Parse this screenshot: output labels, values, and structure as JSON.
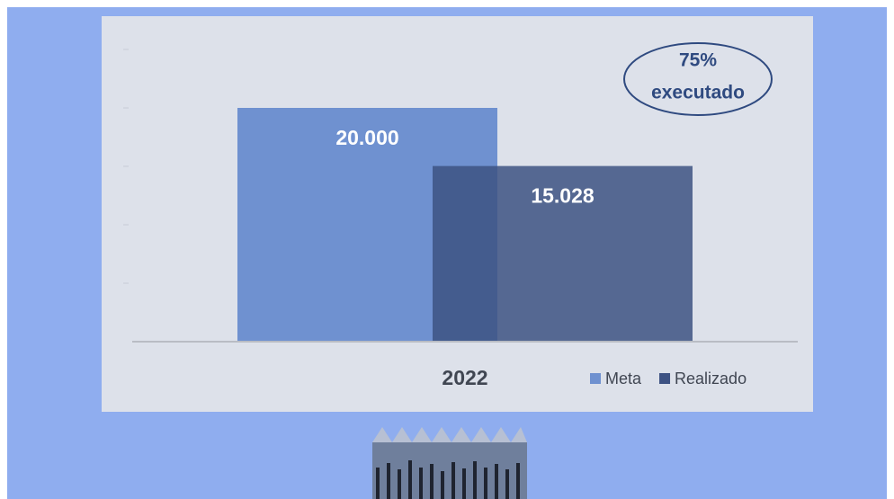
{
  "chart_data": {
    "type": "bar",
    "categories": [
      "2022"
    ],
    "series": [
      {
        "name": "Meta",
        "color": "#6f91d0",
        "values": [
          20000
        ],
        "value_labels": [
          "20.000"
        ]
      },
      {
        "name": "Realizado",
        "color": "#3d5283",
        "values": [
          15028
        ],
        "value_labels": [
          "15.028"
        ]
      }
    ],
    "ylim": [
      0,
      25000
    ],
    "yticks": [
      0,
      5000,
      10000,
      15000,
      20000,
      25000
    ],
    "annotation": [
      "75%",
      "executado"
    ],
    "legend": "bottom-right"
  }
}
